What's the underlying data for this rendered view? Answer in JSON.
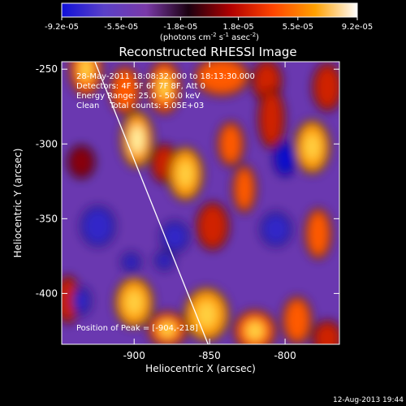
{
  "chart_data": {
    "type": "heatmap",
    "title": "Reconstructed RHESSI Image",
    "colorbar": {
      "tick_labels": [
        "-9.2e-05",
        "-5.5e-05",
        "-1.8e-05",
        "1.8e-05",
        "5.5e-05",
        "9.2e-05"
      ],
      "tick_values": [
        -9.2e-05,
        -5.5e-05,
        -1.8e-05,
        1.8e-05,
        5.5e-05,
        9.2e-05
      ],
      "range": [
        -9.2e-05,
        9.2e-05
      ],
      "colors": [
        "#1010d8",
        "#5a40c8",
        "#7a3aa8",
        "#1a0010",
        "#b00000",
        "#ff4400",
        "#ffa000",
        "#ffffff"
      ],
      "units_prefix": "(photons cm",
      "units_exp1": "-2",
      "units_mid": " s",
      "units_exp2": "-1",
      "units_mid2": " asec",
      "units_exp3": "-2",
      "units_suffix": ")"
    },
    "info_lines": [
      "28-May-2011 18:08:32.000 to 18:13:30.000",
      "Detectors: 4F 5F 6F 7F 8F, Att 0",
      "Energy Range: 25.0 - 50.0 keV",
      "Clean    Total counts: 5.05E+03"
    ],
    "peak_label": "Position of Peak = [-904,-218]",
    "peak": [
      -904,
      -218
    ],
    "xlabel": "Heliocentric X (arcsec)",
    "ylabel": "Heliocentric Y (arcsec)",
    "xlim": [
      -948,
      -764
    ],
    "ylim": [
      -434,
      -245
    ],
    "x_ticks": [
      -900,
      -850,
      -800
    ],
    "x_tick_labels": [
      "-900",
      "-850",
      "-800"
    ],
    "y_ticks": [
      -250,
      -300,
      -350,
      -400
    ],
    "y_tick_labels": [
      "-250",
      "-300",
      "-350",
      "-400"
    ],
    "limb_line": [
      [
        -926,
        -245
      ],
      [
        -851,
        -434
      ]
    ],
    "hot_blobs": [
      {
        "x": -932,
        "y": -250,
        "rx": 9,
        "ry": 16,
        "v": 0.8
      },
      {
        "x": -906,
        "y": -264,
        "rx": 8,
        "ry": 14,
        "v": 0.6
      },
      {
        "x": -880,
        "y": -262,
        "rx": 9,
        "ry": 16,
        "v": 0.8
      },
      {
        "x": -842,
        "y": -255,
        "rx": 16,
        "ry": 11,
        "v": 0.7
      },
      {
        "x": -812,
        "y": -258,
        "rx": 8,
        "ry": 12,
        "v": 0.5
      },
      {
        "x": -772,
        "y": -262,
        "rx": 8,
        "ry": 14,
        "v": 0.5
      },
      {
        "x": -898,
        "y": -297,
        "rx": 9,
        "ry": 17,
        "v": 1.0
      },
      {
        "x": -880,
        "y": -313,
        "rx": 7,
        "ry": 11,
        "v": 0.5
      },
      {
        "x": -866,
        "y": -320,
        "rx": 10,
        "ry": 16,
        "v": 0.85
      },
      {
        "x": -836,
        "y": -300,
        "rx": 7,
        "ry": 13,
        "v": 0.7
      },
      {
        "x": -827,
        "y": -330,
        "rx": 6,
        "ry": 14,
        "v": 0.6
      },
      {
        "x": -809,
        "y": -283,
        "rx": 7,
        "ry": 18,
        "v": 0.5
      },
      {
        "x": -782,
        "y": -302,
        "rx": 10,
        "ry": 16,
        "v": 0.85
      },
      {
        "x": -848,
        "y": -355,
        "rx": 9,
        "ry": 14,
        "v": 0.5
      },
      {
        "x": -778,
        "y": -360,
        "rx": 7,
        "ry": 15,
        "v": 0.6
      },
      {
        "x": -935,
        "y": -312,
        "rx": 7,
        "ry": 9,
        "v": 0.35
      },
      {
        "x": -900,
        "y": -406,
        "rx": 11,
        "ry": 15,
        "v": 0.85
      },
      {
        "x": -878,
        "y": -424,
        "rx": 11,
        "ry": 10,
        "v": 0.8
      },
      {
        "x": -852,
        "y": -414,
        "rx": 13,
        "ry": 16,
        "v": 0.85
      },
      {
        "x": -820,
        "y": -425,
        "rx": 12,
        "ry": 12,
        "v": 0.8
      },
      {
        "x": -792,
        "y": -418,
        "rx": 8,
        "ry": 14,
        "v": 0.6
      },
      {
        "x": -772,
        "y": -430,
        "rx": 8,
        "ry": 10,
        "v": 0.5
      },
      {
        "x": -944,
        "y": -404,
        "rx": 6,
        "ry": 14,
        "v": 0.5
      }
    ],
    "cold_blobs": [
      {
        "x": -800,
        "y": -310,
        "rx": 6,
        "ry": 10,
        "v": 1.0
      },
      {
        "x": -924,
        "y": -355,
        "rx": 10,
        "ry": 12,
        "v": 0.9
      },
      {
        "x": -873,
        "y": -362,
        "rx": 8,
        "ry": 9,
        "v": 0.8
      },
      {
        "x": -806,
        "y": -357,
        "rx": 9,
        "ry": 10,
        "v": 0.8
      },
      {
        "x": -935,
        "y": -405,
        "rx": 5,
        "ry": 8,
        "v": 0.8
      },
      {
        "x": -902,
        "y": -379,
        "rx": 5,
        "ry": 5,
        "v": 0.7
      },
      {
        "x": -880,
        "y": -378,
        "rx": 5,
        "ry": 5,
        "v": 0.7
      }
    ]
  },
  "footer": {
    "date": "12-Aug-2013 19:44"
  }
}
